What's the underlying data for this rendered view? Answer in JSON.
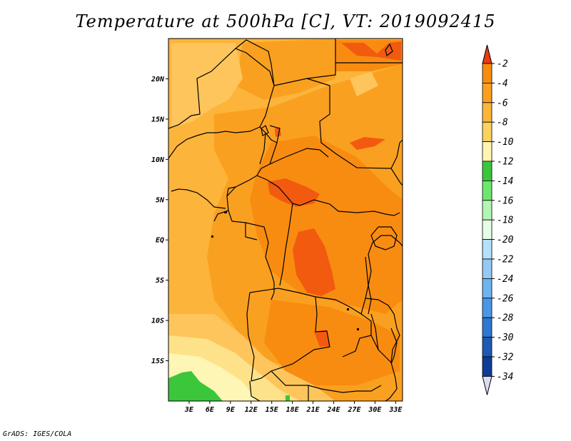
{
  "title": "Temperature at 500hPa [C], VT: 2019092415",
  "footer": "GrADS: IGES/COLA",
  "map": {
    "lat_labels": [
      "20N",
      "15N",
      "10N",
      "5N",
      "EQ",
      "5S",
      "10S",
      "15S"
    ],
    "lat_values": [
      20,
      15,
      10,
      5,
      0,
      -5,
      -10,
      -15
    ],
    "lon_labels": [
      "3E",
      "6E",
      "9E",
      "12E",
      "15E",
      "18E",
      "21E",
      "24E",
      "27E",
      "30E",
      "33E"
    ],
    "lon_values": [
      3,
      6,
      9,
      12,
      15,
      18,
      21,
      24,
      27,
      30,
      33
    ],
    "lat_range": [
      -20,
      25
    ],
    "lon_range": [
      0,
      34
    ],
    "background_color": "#fdb43b",
    "region_colors": {
      "warm_minus6": "#faa020",
      "minus4": "#f88c10",
      "minus2": "#f25a10",
      "minus8": "#fdc55c",
      "minus10": "#fde28a",
      "minus12": "#fef6b4",
      "minus14": "#3cc63c"
    }
  },
  "colorbar": {
    "labels": [
      "-2",
      "-4",
      "-6",
      "-8",
      "-10",
      "-12",
      "-14",
      "-16",
      "-18",
      "-20",
      "-22",
      "-24",
      "-26",
      "-28",
      "-30",
      "-32",
      "-34"
    ],
    "colors": [
      "#f25a10",
      "#f88c10",
      "#faa020",
      "#fdb43b",
      "#fdd15e",
      "#fef5b2",
      "#3cc63c",
      "#6ee66e",
      "#b4f5b4",
      "#e6fde6",
      "#b4e0fa",
      "#96c8f5",
      "#6eb4f0",
      "#4b96e6",
      "#2d78d2",
      "#1e5ab4",
      "#0f3c96"
    ],
    "top_arrow_color": "#e63c14",
    "bottom_arrow_color": "#dcdcf5",
    "bottom_color": "#0f1e6e"
  }
}
